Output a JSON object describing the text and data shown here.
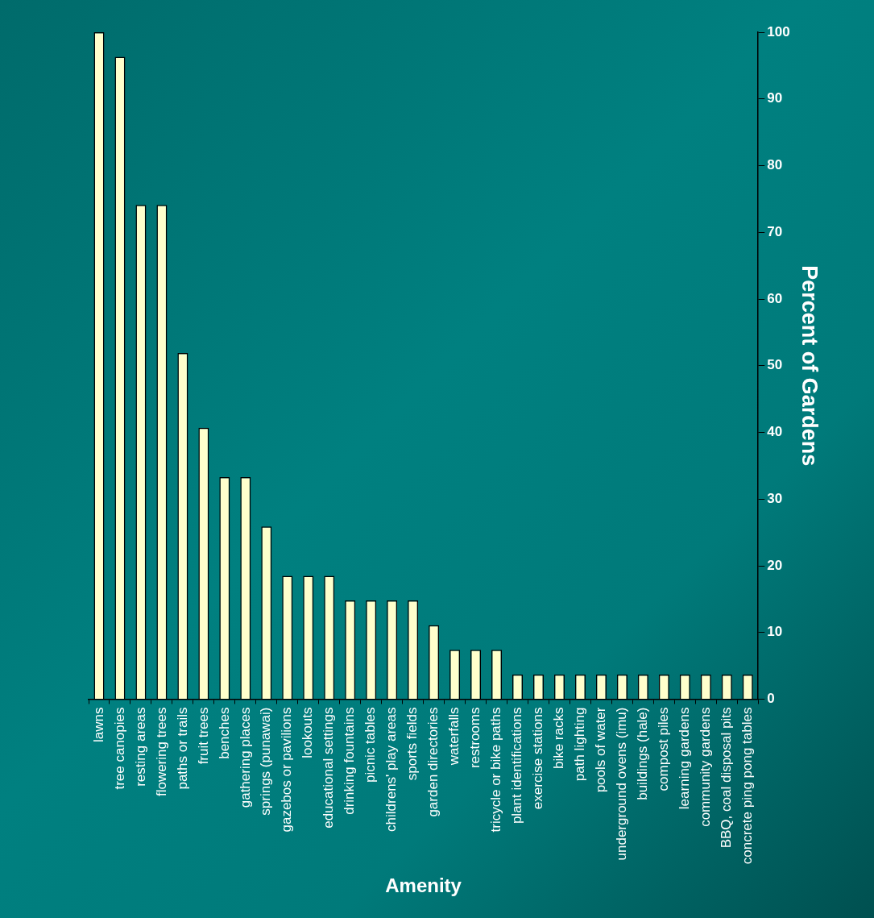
{
  "chart_data": {
    "type": "bar",
    "xlabel": "Amenity",
    "ylabel": "Percent of Gardens",
    "categories": [
      "lawns",
      "tree canopies",
      "resting areas",
      "flowering trees",
      "paths or trails",
      "fruit trees",
      "benches",
      "gathering places",
      "springs (punawai)",
      "gazebos or pavilions",
      "lookouts",
      "educational settings",
      "drinking fountains",
      "picnic tables",
      "childrens' play areas",
      "sports fields",
      "garden directories",
      "waterfalls",
      "restrooms",
      "tricycle or bike paths",
      "plant identifications",
      "exercise stations",
      "bike racks",
      "path lighting",
      "pools of water",
      "underground ovens (imu)",
      "buildings (hale)",
      "compost piles",
      "learning gardens",
      "community gardens",
      "BBQ, coal disposal pits",
      "concrete ping pong tables"
    ],
    "values": [
      100,
      96.3,
      74.1,
      74.1,
      51.9,
      40.7,
      33.3,
      33.3,
      25.9,
      18.5,
      18.5,
      18.5,
      14.8,
      14.8,
      14.8,
      14.8,
      11.1,
      7.4,
      7.4,
      7.4,
      3.7,
      3.7,
      3.7,
      3.7,
      3.7,
      3.7,
      3.7,
      3.7,
      3.7,
      3.7,
      3.7,
      3.7
    ],
    "color": "#ffffcc",
    "ylim": [
      0,
      100
    ],
    "yticks": [
      0,
      10,
      20,
      30,
      40,
      50,
      60,
      70,
      80,
      90,
      100
    ],
    "grid": false
  }
}
